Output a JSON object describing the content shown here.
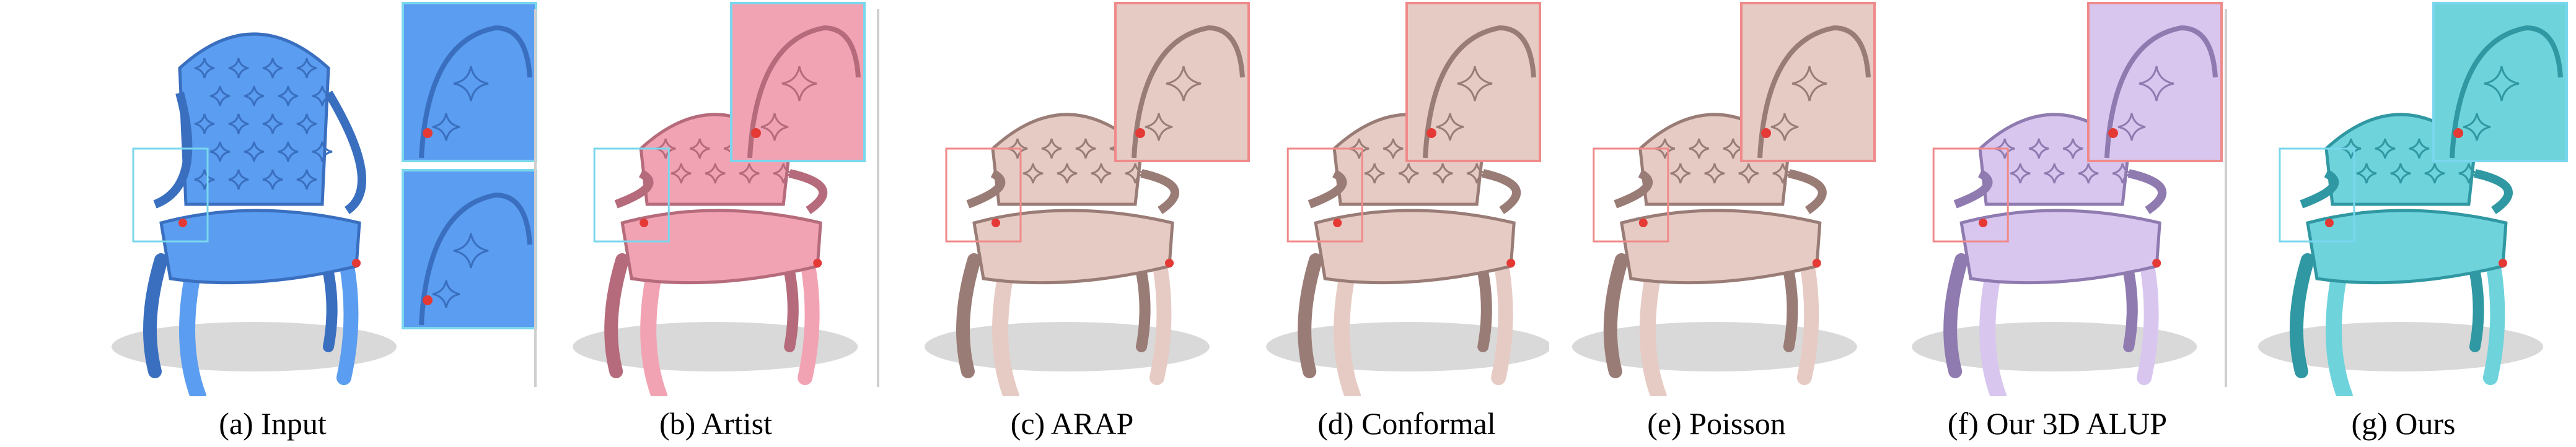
{
  "panels": [
    {
      "id": "a",
      "caption": "(a) Input",
      "color": "#5b9df0",
      "dark": "#3a6fc0",
      "inset": "#7ad7ee",
      "inset_count": 2
    },
    {
      "id": "b",
      "caption": "(b) Artist",
      "color": "#f2a3b3",
      "dark": "#b56b7b",
      "inset": "#7ad7ee",
      "inset_count": 1
    },
    {
      "id": "c",
      "caption": "(c) ARAP",
      "color": "#e6cbc4",
      "dark": "#9a7c76",
      "inset": "#f08a8a",
      "inset_count": 1
    },
    {
      "id": "d",
      "caption": "(d) Conformal",
      "color": "#e6cbc4",
      "dark": "#9a7c76",
      "inset": "#f08a8a",
      "inset_count": 1
    },
    {
      "id": "e",
      "caption": "(e) Poisson",
      "color": "#e6cbc4",
      "dark": "#9a7c76",
      "inset": "#f08a8a",
      "inset_count": 1
    },
    {
      "id": "f",
      "caption": "(f) Our 3D ALUP",
      "color": "#d8c6ef",
      "dark": "#8f7bb0",
      "inset": "#f08a8a",
      "inset_count": 1
    },
    {
      "id": "g",
      "caption": "(g) Ours",
      "color": "#6fd3dc",
      "dark": "#2f98a2",
      "inset": "#7ad7ee",
      "inset_count": 1
    }
  ],
  "marker_colors": {
    "constraint": "#e53935",
    "handle": "#f39c12"
  }
}
